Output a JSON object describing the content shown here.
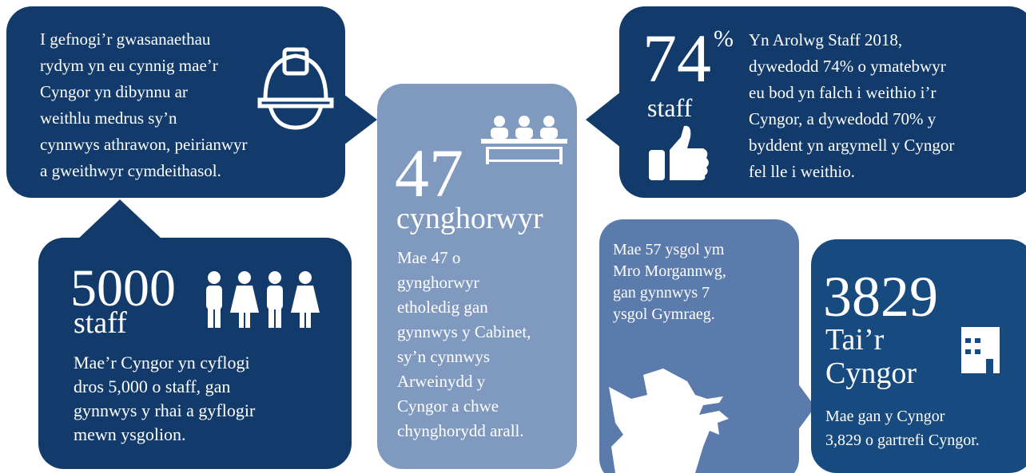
{
  "workforce": {
    "lines": [
      "I gefnogi’r gwasanaethau",
      "rydym yn eu cynnig mae’r",
      "Cyngor yn dibynnu ar",
      "weithlu medrus sy’n",
      "cynnwys athrawon, peirianwyr",
      "a gweithwyr cymdeithasol."
    ]
  },
  "staff": {
    "number": "5000",
    "unit": "staff",
    "lines": [
      "Mae’r Cyngor yn cyflogi",
      "dros 5,000 o staff, gan",
      "gynnwys y rhai a gyflogir",
      "mewn ysgolion."
    ]
  },
  "councillors": {
    "number": "47",
    "unit": "cynghorwyr",
    "lines": [
      "Mae 47 o",
      "gynghorwyr",
      "etholedig gan",
      "gynnwys y Cabinet,",
      "sy’n cynnwys",
      "Arweinydd y",
      "Cyngor a chwe",
      "chynghorydd arall."
    ]
  },
  "survey": {
    "number": "74",
    "symbol": "%",
    "unit": "staff",
    "lines": [
      "Yn Arolwg Staff 2018,",
      "dywedodd 74% o ymatebwyr",
      "eu bod yn falch i weithio i’r",
      "Cyngor, a dywedodd 70% y",
      "byddent yn argymell y Cyngor",
      "fel lle i weithio."
    ]
  },
  "schools": {
    "lines": [
      "Mae 57 ysgol ym",
      "Mro Morgannwg,",
      "gan gynnwys 7",
      "ysgol Gymraeg."
    ]
  },
  "housing": {
    "number": "3829",
    "unit_lines": [
      "Tai’r",
      "Cyngor"
    ],
    "lines": [
      "Mae gan y Cyngor",
      "3,829 o gartrefi Cyngor."
    ]
  }
}
